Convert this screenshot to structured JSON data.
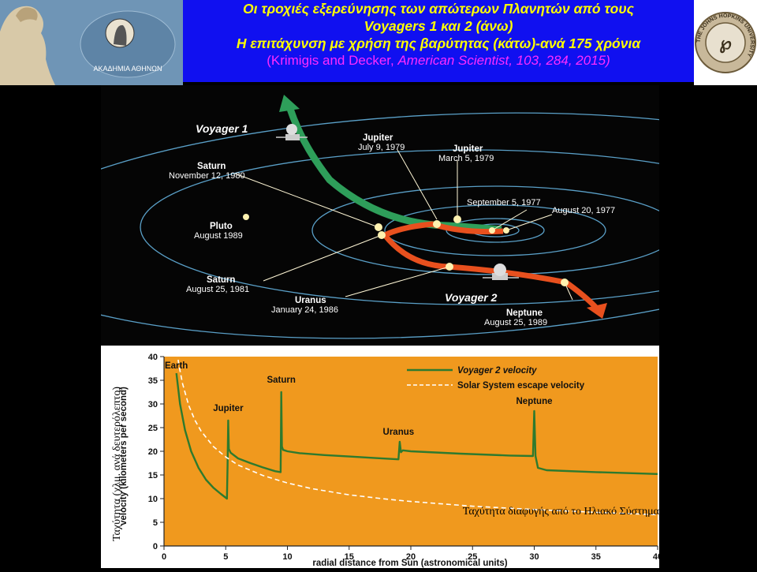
{
  "header": {
    "title_line1": "Οι τροχιές εξερεύνησης των απώτερων Πλανητών από τους",
    "title_line2": "Voyagers 1 και 2 (άνω)",
    "title_line3": "Η επιτάχυνση με χρήση της βαρύτητας (κάτω)-ανά 175 χρόνια",
    "citation_authors": "(Krimigis and Decker, ",
    "citation_journal": "American Scientist, 103, 284, 2015)",
    "left_logo_text": "ΑΚΑΔΗΜΙΑ ΑΘΗΝΩΝ",
    "right_logo_text": "THE JOHNS HOPKINS UNIVERSITY",
    "colors": {
      "title_bg": "#1010f0",
      "title_text": "#ffff00",
      "citation": "#ff2bff"
    }
  },
  "trajectory_map": {
    "voyager1_label": "Voyager 1",
    "voyager2_label": "Voyager 2",
    "events": {
      "jupiter_v1": {
        "name": "Jupiter",
        "date": "July 9, 1979"
      },
      "jupiter_v2": {
        "name": "Jupiter",
        "date": "March 5, 1979"
      },
      "saturn_v1": {
        "name": "Saturn",
        "date": "November 12, 1980"
      },
      "sept": {
        "date": "September 5, 1977"
      },
      "aug": {
        "date": "August 20, 1977"
      },
      "pluto": {
        "name": "Pluto",
        "date": "August 1989"
      },
      "saturn_v2": {
        "name": "Saturn",
        "date": "August 25, 1981"
      },
      "uranus": {
        "name": "Uranus",
        "date": "January 24, 1986"
      },
      "neptune": {
        "name": "Neptune",
        "date": "August 25, 1989"
      }
    },
    "colors": {
      "voyager1_arrow": "#2e9e5a",
      "voyager2_arrow": "#e8501e",
      "orbits": "#5aa0c8"
    }
  },
  "chart_data": {
    "type": "line",
    "xlabel": "radial distance from Sun (astronomical units)",
    "ylabel": "velocity (kilometers per second)",
    "ylabel_overlay": "Ταχύτητα (χλμ. ανά δευτερόλεπτο)",
    "annotation": "Ταχύτητα διαφυγής από το Ηλιακό Σύστημα",
    "xlim": [
      0,
      40
    ],
    "ylim": [
      0,
      40
    ],
    "xticks": [
      0,
      5,
      10,
      15,
      20,
      25,
      30,
      35,
      40
    ],
    "yticks": [
      0,
      5,
      10,
      15,
      20,
      25,
      30,
      35,
      40
    ],
    "background": "#f0991e",
    "series": [
      {
        "name": "Voyager 2 velocity",
        "color": "#2e7a2e",
        "style": "solid",
        "x": [
          1.0,
          1.3,
          1.7,
          2.2,
          2.8,
          3.4,
          4.0,
          4.6,
          5.1,
          5.15,
          5.2,
          5.25,
          5.4,
          6.0,
          7.0,
          8.0,
          9.0,
          9.45,
          9.5,
          9.55,
          9.65,
          10.0,
          11.0,
          13.0,
          15.0,
          17.0,
          19.0,
          19.1,
          19.2,
          19.35,
          20.0,
          24.0,
          28.0,
          29.9,
          30.0,
          30.1,
          30.3,
          31.0,
          35.0,
          40.0
        ],
        "y": [
          36.5,
          30.0,
          24.5,
          20.0,
          16.5,
          14.0,
          12.3,
          11.0,
          10.0,
          17.0,
          26.5,
          20.5,
          19.7,
          18.5,
          17.5,
          16.6,
          15.8,
          15.6,
          32.5,
          21.0,
          20.3,
          20.0,
          19.6,
          19.2,
          18.9,
          18.6,
          18.3,
          22.0,
          19.8,
          20.2,
          20.0,
          19.5,
          19.1,
          19.0,
          28.5,
          19.0,
          16.5,
          16.0,
          15.6,
          15.2
        ]
      },
      {
        "name": "Solar System escape velocity",
        "color": "#ffffff",
        "style": "dashed",
        "x": [
          0.9,
          1.0,
          1.2,
          1.5,
          2.0,
          2.5,
          3.0,
          4.0,
          5.0,
          6.0,
          8.0,
          10.0,
          12.0,
          15.0,
          18.0,
          20.0,
          25.0,
          30.0,
          35.0,
          40.0
        ],
        "y": [
          44.3,
          42.0,
          38.3,
          34.3,
          29.7,
          26.6,
          24.3,
          21.0,
          18.8,
          17.1,
          14.9,
          13.3,
          12.1,
          10.8,
          9.9,
          9.4,
          8.4,
          7.7,
          7.1,
          6.6
        ]
      }
    ],
    "point_labels": [
      {
        "text": "Earth",
        "x": 1.0,
        "y": 37.5
      },
      {
        "text": "Jupiter",
        "x": 5.2,
        "y": 28.5
      },
      {
        "text": "Saturn",
        "x": 9.5,
        "y": 34.5
      },
      {
        "text": "Uranus",
        "x": 19.0,
        "y": 23.5
      },
      {
        "text": "Neptune",
        "x": 30.0,
        "y": 30.0
      }
    ],
    "legend_position": "top-right"
  }
}
